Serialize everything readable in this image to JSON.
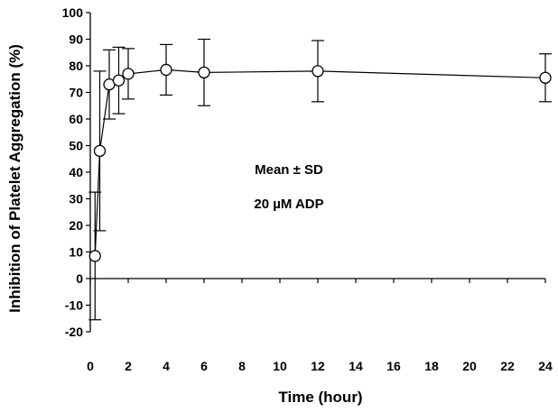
{
  "chart_data": {
    "type": "scatter",
    "title": "",
    "xlabel": "Time (hour)",
    "ylabel": "Inhibition of Platelet Aggregation (%)",
    "xlim": [
      0,
      24
    ],
    "ylim": [
      -20,
      100
    ],
    "xticks": [
      0,
      2,
      4,
      6,
      8,
      10,
      12,
      14,
      16,
      18,
      20,
      22,
      24
    ],
    "yticks": [
      -20,
      -10,
      0,
      10,
      20,
      30,
      40,
      50,
      60,
      70,
      80,
      90,
      100
    ],
    "grid": false,
    "legend": "none",
    "annotations": [
      "Mean ± SD",
      "20 µM ADP"
    ],
    "series": [
      {
        "marker": "open-circle",
        "line": true,
        "error_bars": "sd",
        "points": [
          {
            "x": 0.25,
            "y": 8.5,
            "sd": 24
          },
          {
            "x": 0.5,
            "y": 48,
            "sd": 30
          },
          {
            "x": 1,
            "y": 73,
            "sd": 13
          },
          {
            "x": 1.5,
            "y": 74.5,
            "sd": 12.5
          },
          {
            "x": 2,
            "y": 77,
            "sd": 9.5
          },
          {
            "x": 4,
            "y": 78.5,
            "sd": 9.5
          },
          {
            "x": 6,
            "y": 77.5,
            "sd": 12.5
          },
          {
            "x": 12,
            "y": 78,
            "sd": 11.5
          },
          {
            "x": 24,
            "y": 75.5,
            "sd": 9
          }
        ]
      }
    ]
  }
}
